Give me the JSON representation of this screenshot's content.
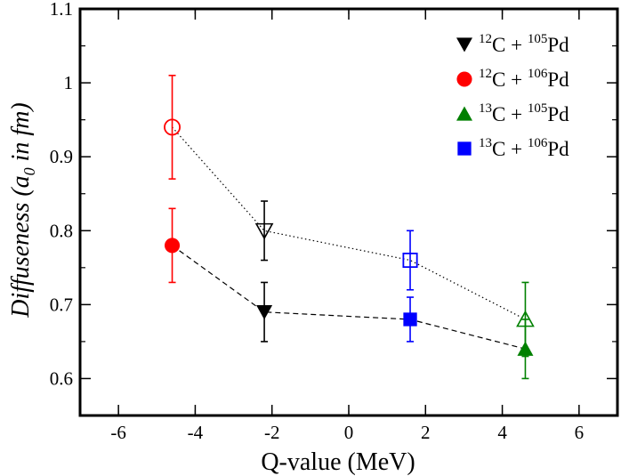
{
  "chart_data": {
    "type": "scatter",
    "title": "",
    "xlabel": "Q-value (MeV)",
    "ylabel": {
      "prefix": "Diffuseness (a",
      "sub": "0",
      "suffix": " in fm)"
    },
    "xlim": [
      -7,
      7
    ],
    "ylim": [
      0.55,
      1.1
    ],
    "xticks": [
      -6,
      -4,
      -2,
      0,
      2,
      4,
      6
    ],
    "xtick_labels": [
      "-6",
      "-4",
      "-2",
      "0",
      "2",
      "4",
      "6"
    ],
    "yticks": [
      0.6,
      0.7,
      0.8,
      0.9,
      1.0,
      1.1
    ],
    "ytick_labels": [
      "0.6",
      "0.7",
      "0.8",
      "0.9",
      "1",
      "1.1"
    ],
    "grid": false,
    "legend_position": "top-right",
    "series": [
      {
        "name": "12C + 105Pd",
        "label": {
          "a1": "12",
          "e1": "C + ",
          "a2": "105",
          "e2": "Pd"
        },
        "color": "#000000",
        "marker": "triangle-down",
        "filled": {
          "x": -2.2,
          "y": 0.69,
          "err": 0.04
        },
        "open": {
          "x": -2.2,
          "y": 0.8,
          "err": 0.04
        }
      },
      {
        "name": "12C + 106Pd",
        "label": {
          "a1": "12",
          "e1": "C + ",
          "a2": "106",
          "e2": "Pd"
        },
        "color": "#ff0000",
        "marker": "circle",
        "filled": {
          "x": -4.6,
          "y": 0.78,
          "err": 0.05
        },
        "open": {
          "x": -4.6,
          "y": 0.94,
          "err": 0.07
        }
      },
      {
        "name": "13C + 105Pd",
        "label": {
          "a1": "13",
          "e1": "C + ",
          "a2": "105",
          "e2": "Pd"
        },
        "color": "#008000",
        "marker": "triangle-up",
        "filled": {
          "x": 4.6,
          "y": 0.64,
          "err": 0.04
        },
        "open": {
          "x": 4.6,
          "y": 0.68,
          "err": 0.05
        }
      },
      {
        "name": "13C + 106Pd",
        "label": {
          "a1": "13",
          "e1": "C + ",
          "a2": "106",
          "e2": "Pd"
        },
        "color": "#0000ff",
        "marker": "square",
        "filled": {
          "x": 1.6,
          "y": 0.68,
          "err": 0.03
        },
        "open": {
          "x": 1.6,
          "y": 0.76,
          "err": 0.04
        }
      }
    ],
    "lines": [
      {
        "name": "filled-trend",
        "style": "dashed",
        "order": [
          1,
          0,
          3,
          2
        ],
        "which": "filled"
      },
      {
        "name": "open-trend",
        "style": "dotted",
        "order": [
          1,
          0,
          3,
          2
        ],
        "which": "open"
      }
    ]
  }
}
